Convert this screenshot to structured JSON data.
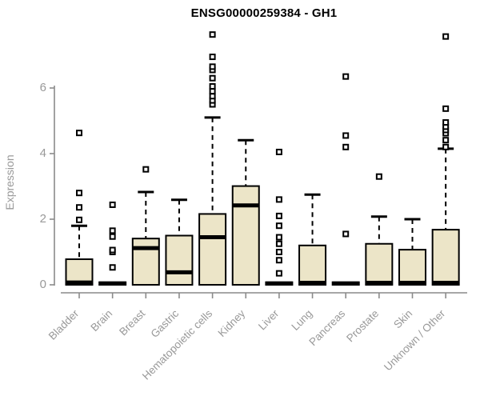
{
  "colors": {
    "box_fill": "#ece5c8",
    "box_border": "#000000",
    "axis_line": "#8a8a8a",
    "axis_text": "#999999",
    "title_text": "#000000"
  },
  "chart_data": {
    "type": "box",
    "title": "ENSG00000259384 - GH1",
    "xlabel": "",
    "ylabel": "Expression",
    "ylim": [
      0,
      7.8
    ],
    "yticks": [
      0,
      2,
      4,
      6
    ],
    "grid": false,
    "legend": false,
    "categories": [
      "Bladder",
      "Brain",
      "Breast",
      "Gastric",
      "Hematopoietic cells",
      "Kidney",
      "Liver",
      "Lung",
      "Pancreas",
      "Prostate",
      "Skin",
      "Unknown / Other"
    ],
    "series": [
      {
        "name": "Bladder",
        "q1": 0,
        "median": 0.07,
        "q3": 0.78,
        "whisker_low": 0,
        "whisker_high": 1.8,
        "outliers": [
          1.98,
          2.36,
          2.8,
          4.63
        ]
      },
      {
        "name": "Brain",
        "q1": 0,
        "median": 0.04,
        "q3": 0.08,
        "whisker_low": 0,
        "whisker_high": 0.08,
        "outliers": [
          0.53,
          1.0,
          1.06,
          1.47,
          1.65,
          2.44
        ]
      },
      {
        "name": "Breast",
        "q1": 0,
        "median": 1.12,
        "q3": 1.41,
        "whisker_low": 0,
        "whisker_high": 2.83,
        "outliers": [
          3.52
        ]
      },
      {
        "name": "Gastric",
        "q1": 0,
        "median": 0.38,
        "q3": 1.5,
        "whisker_low": 0,
        "whisker_high": 2.59,
        "outliers": []
      },
      {
        "name": "Hematopoietic cells",
        "q1": 0,
        "median": 1.45,
        "q3": 2.16,
        "whisker_low": 0,
        "whisker_high": 5.1,
        "outliers": [
          5.5,
          5.62,
          5.75,
          5.9,
          6.05,
          6.3,
          6.55,
          6.65,
          6.95,
          7.63
        ]
      },
      {
        "name": "Kidney",
        "q1": 0,
        "median": 2.42,
        "q3": 3.01,
        "whisker_low": 0,
        "whisker_high": 4.41,
        "outliers": []
      },
      {
        "name": "Liver",
        "q1": 0,
        "median": 0.04,
        "q3": 0.08,
        "whisker_low": 0,
        "whisker_high": 0.08,
        "outliers": [
          0.35,
          0.75,
          1.0,
          1.25,
          1.45,
          1.8,
          2.1,
          2.6,
          4.05
        ]
      },
      {
        "name": "Lung",
        "q1": 0,
        "median": 0.06,
        "q3": 1.2,
        "whisker_low": 0,
        "whisker_high": 2.75,
        "outliers": []
      },
      {
        "name": "Pancreas",
        "q1": 0,
        "median": 0.04,
        "q3": 0.08,
        "whisker_low": 0,
        "whisker_high": 0.08,
        "outliers": [
          1.55,
          4.2,
          4.55,
          6.35
        ]
      },
      {
        "name": "Prostate",
        "q1": 0,
        "median": 0.06,
        "q3": 1.25,
        "whisker_low": 0,
        "whisker_high": 2.08,
        "outliers": [
          3.3
        ]
      },
      {
        "name": "Skin",
        "q1": 0,
        "median": 0.06,
        "q3": 1.07,
        "whisker_low": 0,
        "whisker_high": 2.0,
        "outliers": []
      },
      {
        "name": "Unknown / Other",
        "q1": 0,
        "median": 0.06,
        "q3": 1.68,
        "whisker_low": 0,
        "whisker_high": 4.15,
        "outliers": [
          4.2,
          4.41,
          4.62,
          4.72,
          4.82,
          4.95,
          5.37,
          7.57
        ]
      }
    ]
  }
}
